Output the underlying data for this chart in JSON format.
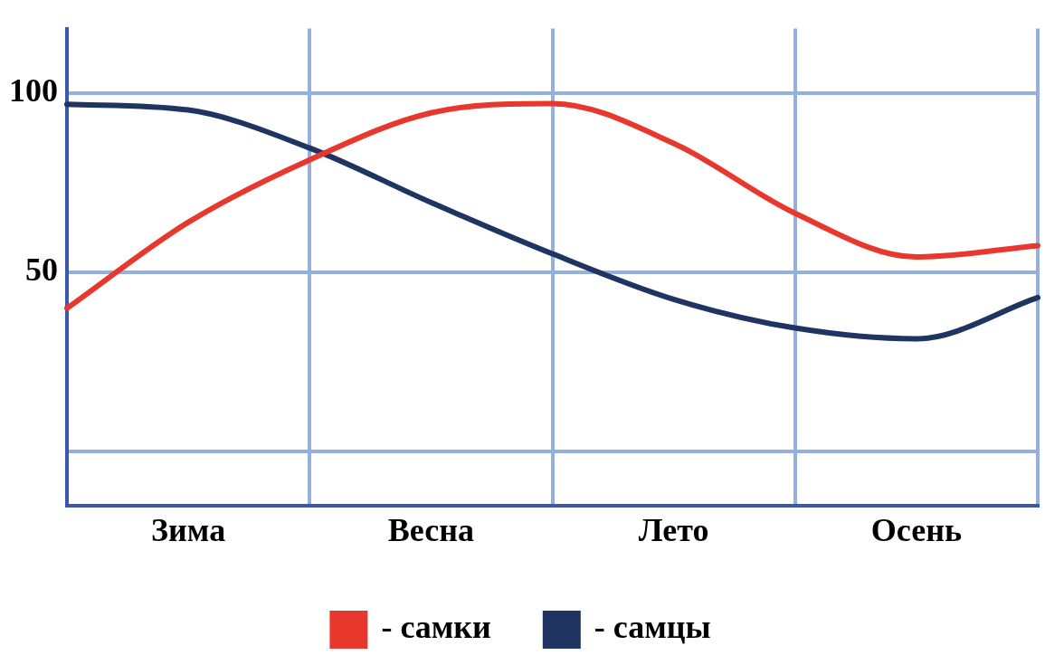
{
  "chart_data": {
    "type": "line",
    "categories": [
      null,
      "Зима",
      null,
      "Весна",
      null,
      "Лето",
      null,
      "Осень",
      null
    ],
    "series": [
      {
        "name": "- самки",
        "color": "#e8372c",
        "values": [
          40,
          64,
          81.4,
          94.5,
          97.1,
          86,
          66.5,
          54.3,
          57.5
        ]
      },
      {
        "name": "- самцы",
        "color": "#1f3461",
        "values": [
          96.9,
          95.3,
          84.7,
          69.5,
          55.2,
          42.5,
          34.5,
          31.5,
          43
        ]
      }
    ],
    "ylim": [
      -15,
      118
    ],
    "yticks": [
      {
        "value": 0,
        "label": null
      },
      50,
      100
    ],
    "grid": true,
    "legend": "bottom",
    "marker": "none",
    "line_style": "solid"
  }
}
